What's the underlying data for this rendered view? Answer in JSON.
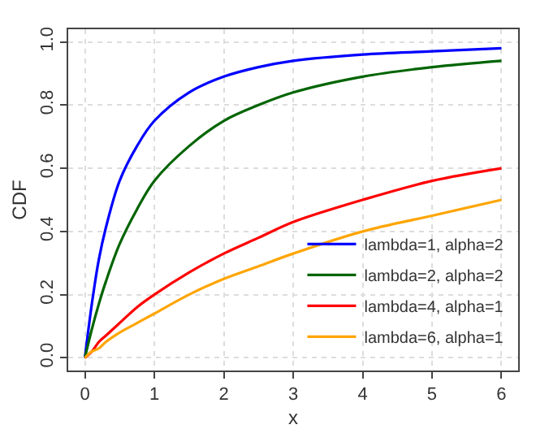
{
  "chart_data": {
    "type": "line",
    "xlabel": "x",
    "ylabel": "CDF",
    "x": [
      0,
      0.1,
      0.2,
      0.3,
      0.5,
      0.75,
      1,
      1.5,
      2,
      2.5,
      3,
      4,
      5,
      6
    ],
    "series": [
      {
        "name": "lambda=1, alpha=2",
        "color": "#0000ff",
        "values": [
          0,
          0.17,
          0.31,
          0.41,
          0.56,
          0.67,
          0.75,
          0.84,
          0.89,
          0.92,
          0.94,
          0.96,
          0.97,
          0.98
        ]
      },
      {
        "name": "lambda=2, alpha=2",
        "color": "#006400",
        "values": [
          0,
          0.09,
          0.17,
          0.24,
          0.36,
          0.47,
          0.56,
          0.67,
          0.75,
          0.8,
          0.84,
          0.89,
          0.92,
          0.94
        ]
      },
      {
        "name": "lambda=4, alpha=1",
        "color": "#ff0000",
        "values": [
          0,
          0.02,
          0.05,
          0.07,
          0.11,
          0.16,
          0.2,
          0.27,
          0.33,
          0.38,
          0.43,
          0.5,
          0.56,
          0.6
        ]
      },
      {
        "name": "lambda=6, alpha=1",
        "color": "#ffa500",
        "values": [
          0,
          0.02,
          0.03,
          0.05,
          0.08,
          0.11,
          0.14,
          0.2,
          0.25,
          0.29,
          0.33,
          0.4,
          0.45,
          0.5
        ]
      }
    ],
    "xlim": [
      -0.24,
      6.24
    ],
    "ylim": [
      -0.04,
      1.04
    ],
    "xticks": [
      0,
      1,
      2,
      3,
      4,
      5,
      6
    ],
    "yticks": [
      {
        "value": 0,
        "label": "0.0"
      },
      {
        "value": 0.2,
        "label": "0.2"
      },
      {
        "value": 0.4,
        "label": "0.4"
      },
      {
        "value": 0.6,
        "label": "0.6"
      },
      {
        "value": 0.8,
        "label": "0.8"
      },
      {
        "value": 1,
        "label": "1.0"
      }
    ],
    "grid": true,
    "legend": "bottom right",
    "marker": "none",
    "line_style": "solid"
  }
}
